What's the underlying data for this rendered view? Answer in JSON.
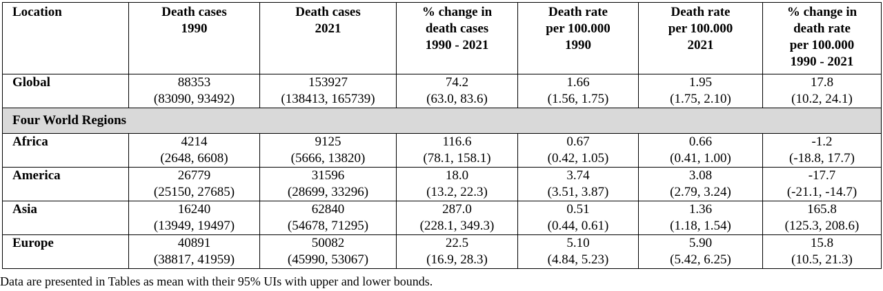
{
  "table": {
    "headers": [
      "Location",
      "Death cases\n1990",
      "Death cases\n2021",
      "% change in\ndeath cases\n1990 - 2021",
      "Death rate\nper 100.000\n1990",
      "Death rate\nper 100.000\n2021",
      "% change in\ndeath rate\nper 100.000\n1990 - 2021"
    ],
    "global": {
      "label": "Global",
      "cells": [
        {
          "main": "88353",
          "ui": "(83090, 93492)"
        },
        {
          "main": "153927",
          "ui": "(138413, 165739)"
        },
        {
          "main": "74.2",
          "ui": "(63.0, 83.6)"
        },
        {
          "main": "1.66",
          "ui": "(1.56, 1.75)"
        },
        {
          "main": "1.95",
          "ui": "(1.75, 2.10)"
        },
        {
          "main": "17.8",
          "ui": "(10.2, 24.1)"
        }
      ]
    },
    "section_label": "Four World Regions",
    "regions": [
      {
        "label": "Africa",
        "cells": [
          {
            "main": "4214",
            "ui": "(2648, 6608)"
          },
          {
            "main": "9125",
            "ui": "(5666, 13820)"
          },
          {
            "main": "116.6",
            "ui": "(78.1, 158.1)"
          },
          {
            "main": "0.67",
            "ui": "(0.42, 1.05)"
          },
          {
            "main": "0.66",
            "ui": "(0.41, 1.00)"
          },
          {
            "main": "-1.2",
            "ui": "(-18.8, 17.7)"
          }
        ]
      },
      {
        "label": "America",
        "cells": [
          {
            "main": "26779",
            "ui": "(25150, 27685)"
          },
          {
            "main": "31596",
            "ui": "(28699, 33296)"
          },
          {
            "main": "18.0",
            "ui": "(13.2, 22.3)"
          },
          {
            "main": "3.74",
            "ui": "(3.51, 3.87)"
          },
          {
            "main": "3.08",
            "ui": "(2.79, 3.24)"
          },
          {
            "main": "-17.7",
            "ui": "(-21.1, -14.7)"
          }
        ]
      },
      {
        "label": "Asia",
        "cells": [
          {
            "main": "16240",
            "ui": "(13949, 19497)"
          },
          {
            "main": "62840",
            "ui": "(54678, 71295)"
          },
          {
            "main": "287.0",
            "ui": "(228.1, 349.3)"
          },
          {
            "main": "0.51",
            "ui": "(0.44, 0.61)"
          },
          {
            "main": "1.36",
            "ui": "(1.18, 1.54)"
          },
          {
            "main": "165.8",
            "ui": "(125.3, 208.6)"
          }
        ]
      },
      {
        "label": "Europe",
        "cells": [
          {
            "main": "40891",
            "ui": "(38817, 41959)"
          },
          {
            "main": "50082",
            "ui": "(45990, 53067)"
          },
          {
            "main": "22.5",
            "ui": "(16.9, 28.3)"
          },
          {
            "main": "5.10",
            "ui": "(4.84, 5.23)"
          },
          {
            "main": "5.90",
            "ui": "(5.42, 6.25)"
          },
          {
            "main": "15.8",
            "ui": "(10.5, 21.3)"
          }
        ]
      }
    ]
  },
  "footnote": "Data are presented in Tables as mean with their 95% UIs with upper and lower bounds.",
  "colors": {
    "section_background": "#d9d9d9",
    "border": "#000000"
  }
}
